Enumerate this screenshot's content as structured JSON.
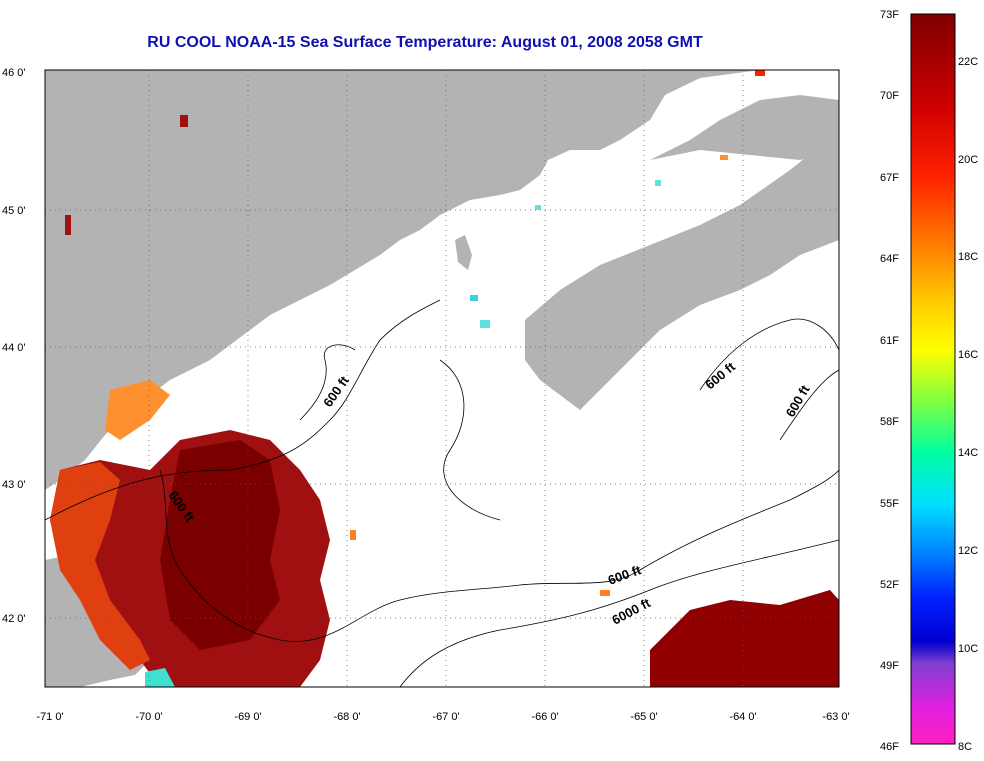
{
  "title": "RU COOL  NOAA-15  Sea Surface Temperature:  August 01, 2008 2058 GMT",
  "map": {
    "lon_range": [
      -71,
      -63
    ],
    "lat_range": [
      41.5,
      46
    ],
    "lon_ticks": [
      "-71 0'",
      "-70 0'",
      "-69 0'",
      "-68 0'",
      "-67 0'",
      "-66 0'",
      "-65 0'",
      "-64 0'",
      "-63 0'"
    ],
    "lat_ticks": [
      "46 0'",
      "45 0'",
      "44 0'",
      "43 0'",
      "42 0'"
    ],
    "land_color": "#b3b3b3",
    "no_data_color": "#ffffff",
    "contour_labels": [
      "600 ft",
      "600 ft",
      "600 ft",
      "600 ft",
      "600 ft",
      "6000 ft"
    ]
  },
  "colorbar": {
    "fahrenheit": [
      "73F",
      "70F",
      "67F",
      "64F",
      "61F",
      "58F",
      "55F",
      "52F",
      "49F",
      "46F"
    ],
    "celsius": [
      "22C",
      "20C",
      "18C",
      "16C",
      "14C",
      "12C",
      "10C",
      "8C"
    ]
  }
}
